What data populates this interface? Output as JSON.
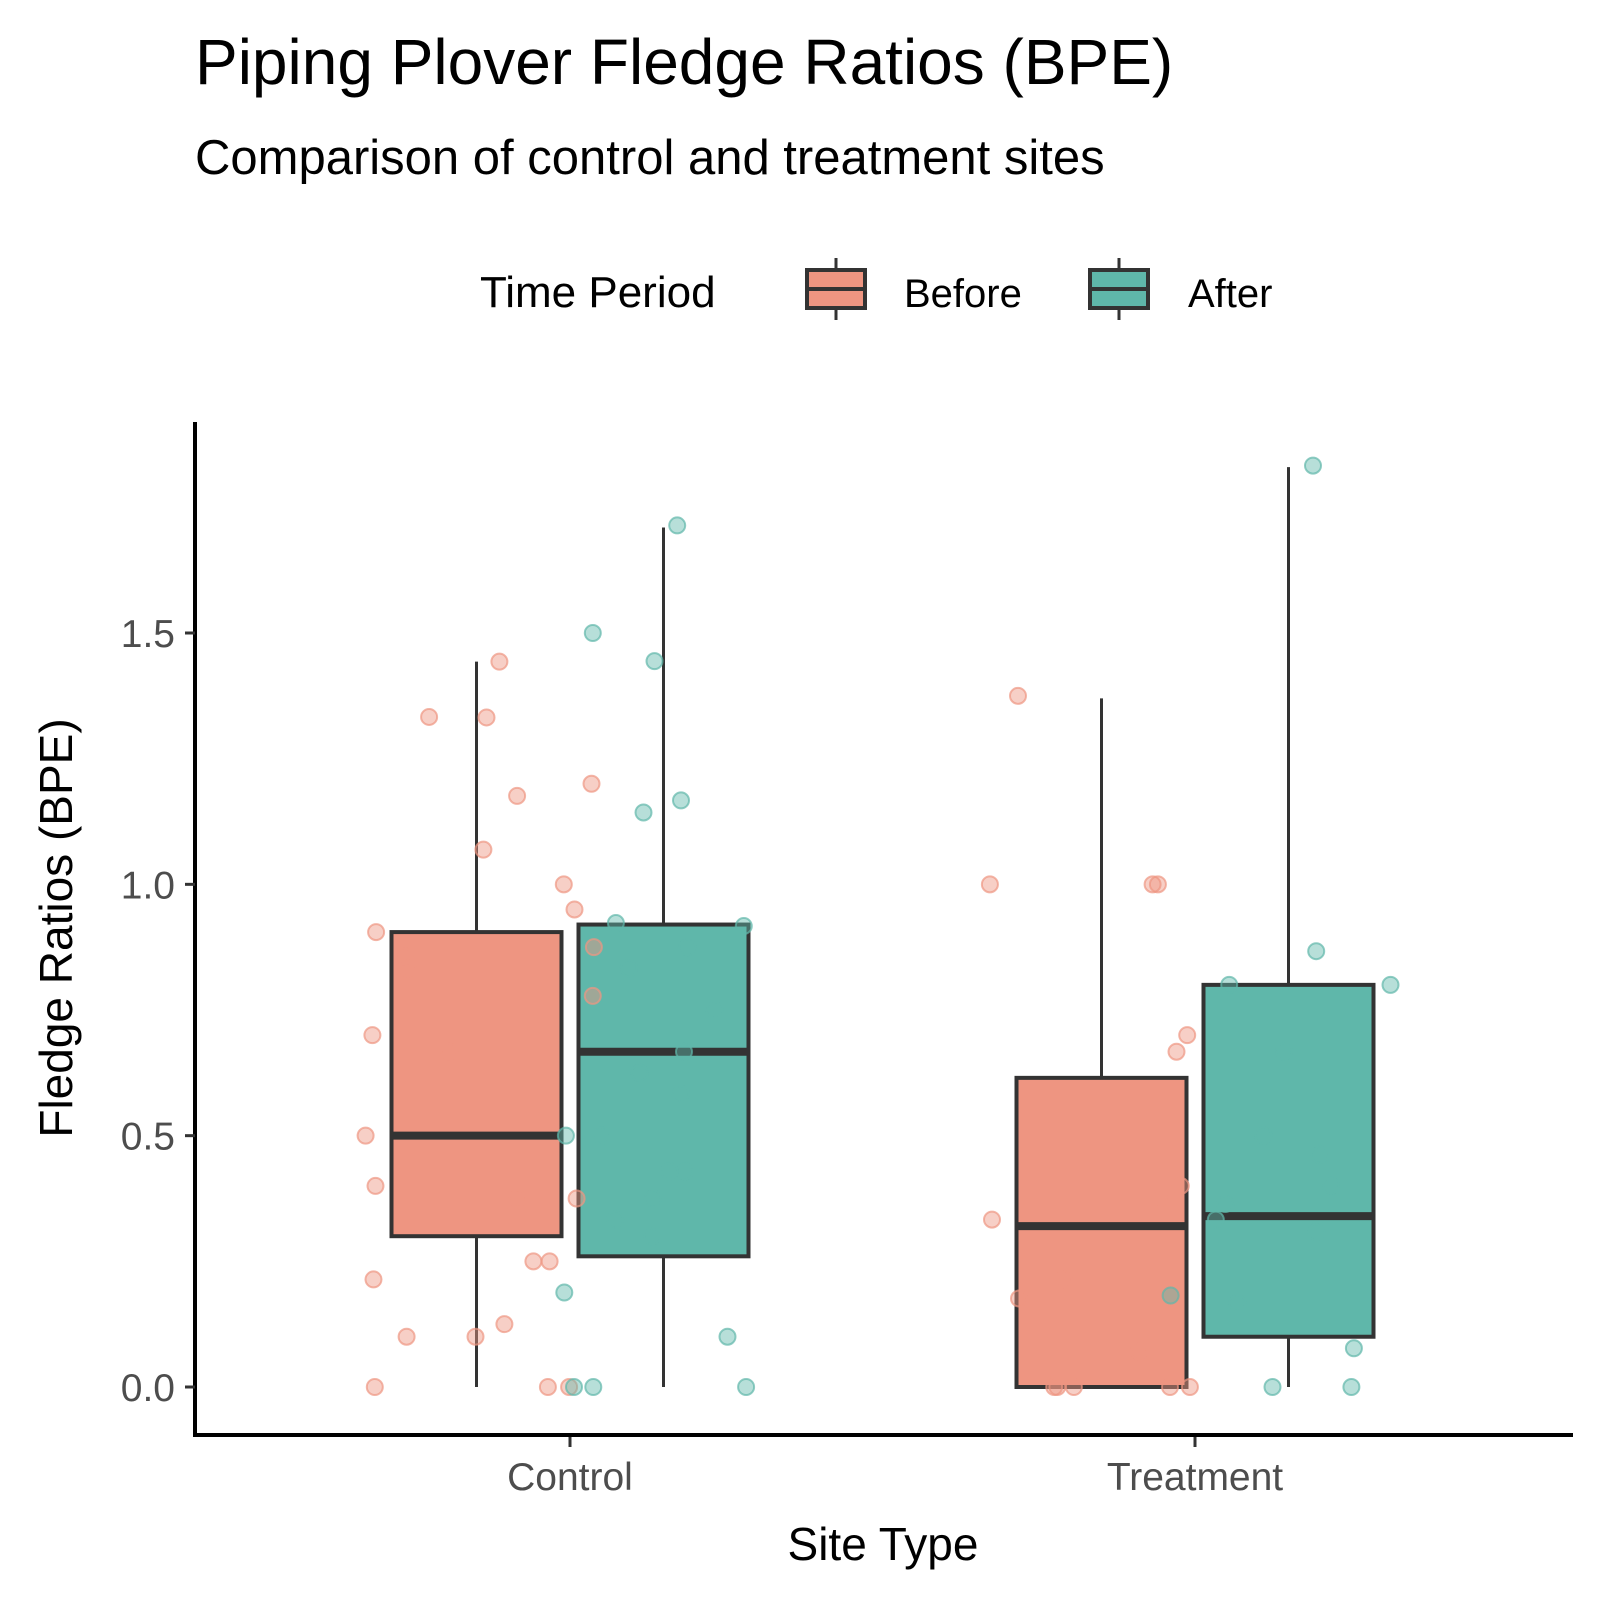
{
  "chart_data": {
    "type": "box",
    "title": "Piping Plover Fledge Ratios (BPE)",
    "subtitle": "Comparison of control and treatment sites",
    "xlabel": "Site Type",
    "ylabel": "Fledge Ratios (BPE)",
    "categories": [
      "Control",
      "Treatment"
    ],
    "ylim": [
      -0.1,
      1.92
    ],
    "yticks": [
      0.0,
      0.5,
      1.0,
      1.5
    ],
    "ytick_labels": [
      "0.0",
      "0.5",
      "1.0",
      "1.5"
    ],
    "grid": false,
    "legend": {
      "title": "Time Period",
      "position": "top",
      "entries": [
        "Before",
        "After"
      ]
    },
    "series": [
      {
        "name": "Before",
        "color": "#ee9581",
        "boxes": [
          {
            "category": "Control",
            "min": 0.0,
            "q1": 0.3,
            "median": 0.5,
            "q3": 0.905,
            "max": 1.443,
            "points": [
              1.443,
              1.333,
              1.332,
              1.2,
              1.176,
              1.069,
              1.0,
              0.95,
              0.905,
              0.875,
              0.833,
              0.857,
              0.778,
              0.7,
              0.667,
              0.5,
              0.4,
              0.375,
              0.375,
              0.25,
              0.25,
              0.214,
              0.125,
              0.1,
              0.1,
              0.0,
              0.0,
              0.0
            ]
          },
          {
            "category": "Treatment",
            "min": 0.0,
            "q1": 0.0,
            "median": 0.32,
            "q3": 0.615,
            "max": 1.37,
            "points": [
              1.375,
              1.0,
              1.0,
              1.0,
              0.7,
              0.667,
              0.4,
              0.375,
              0.333,
              0.214,
              0.176,
              0.071,
              0.0,
              0.0,
              0.0,
              0.0,
              0.0
            ]
          }
        ]
      },
      {
        "name": "After",
        "color": "#5fb7aa",
        "boxes": [
          {
            "category": "Control",
            "min": 0.0,
            "q1": 0.26,
            "median": 0.667,
            "q3": 0.92,
            "max": 1.71,
            "points": [
              1.714,
              1.5,
              1.444,
              1.167,
              1.143,
              0.923,
              0.917,
              0.875,
              0.833,
              0.75,
              0.667,
              0.625,
              0.583,
              0.5,
              0.5,
              0.429,
              0.429,
              0.375,
              0.333,
              0.3,
              0.188,
              0.1,
              0.0,
              0.0,
              0.0
            ]
          },
          {
            "category": "Treatment",
            "min": 0.0,
            "q1": 0.1,
            "median": 0.34,
            "q3": 0.8,
            "max": 1.83,
            "points": [
              1.833,
              0.867,
              0.8,
              0.8,
              0.667,
              0.5,
              0.462,
              0.4,
              0.364,
              0.333,
              0.308,
              0.182,
              0.167,
              0.077,
              0.0,
              0.0
            ]
          }
        ]
      }
    ]
  }
}
